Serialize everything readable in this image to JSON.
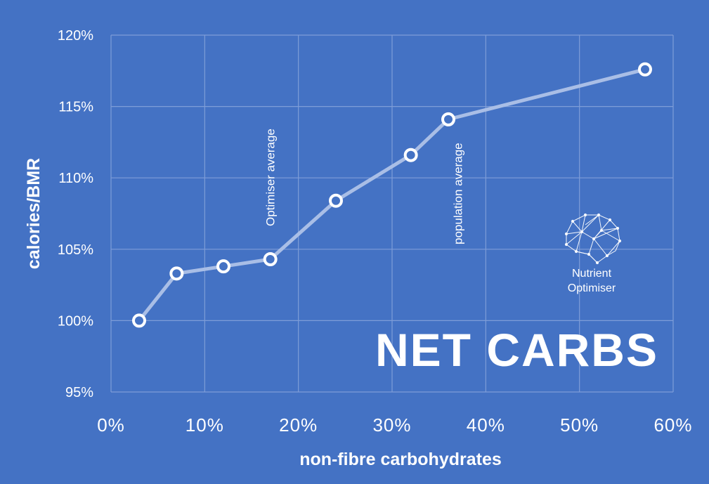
{
  "chart_data": {
    "type": "line",
    "xlabel": "non-fibre carbohydrates",
    "ylabel": "calories/BMR",
    "xlim": [
      0,
      60
    ],
    "ylim": [
      95,
      120
    ],
    "x_ticks": [
      "0%",
      "10%",
      "20%",
      "30%",
      "40%",
      "50%",
      "60%"
    ],
    "y_ticks": [
      "95%",
      "100%",
      "105%",
      "110%",
      "115%",
      "120%"
    ],
    "grid": true,
    "series": [
      {
        "x": [
          3,
          7,
          12,
          17,
          24,
          32,
          36,
          57
        ],
        "y": [
          100.0,
          103.3,
          103.8,
          104.3,
          108.4,
          111.6,
          114.1,
          117.6
        ],
        "color": "#A9BEE6",
        "marker_color": "#ffffff"
      }
    ],
    "annotations": [
      {
        "text": "Optimiser average",
        "x": 17
      },
      {
        "text": "population average",
        "x": 37
      }
    ],
    "overlay_title": "NET CARBS"
  },
  "logo": {
    "line1": "Nutrient",
    "line2": "Optimiser"
  },
  "colors": {
    "background": "#4472C4",
    "grid": "#7E9DD8",
    "line": "#A9BEE6",
    "marker": "#ffffff",
    "text": "#ffffff"
  }
}
